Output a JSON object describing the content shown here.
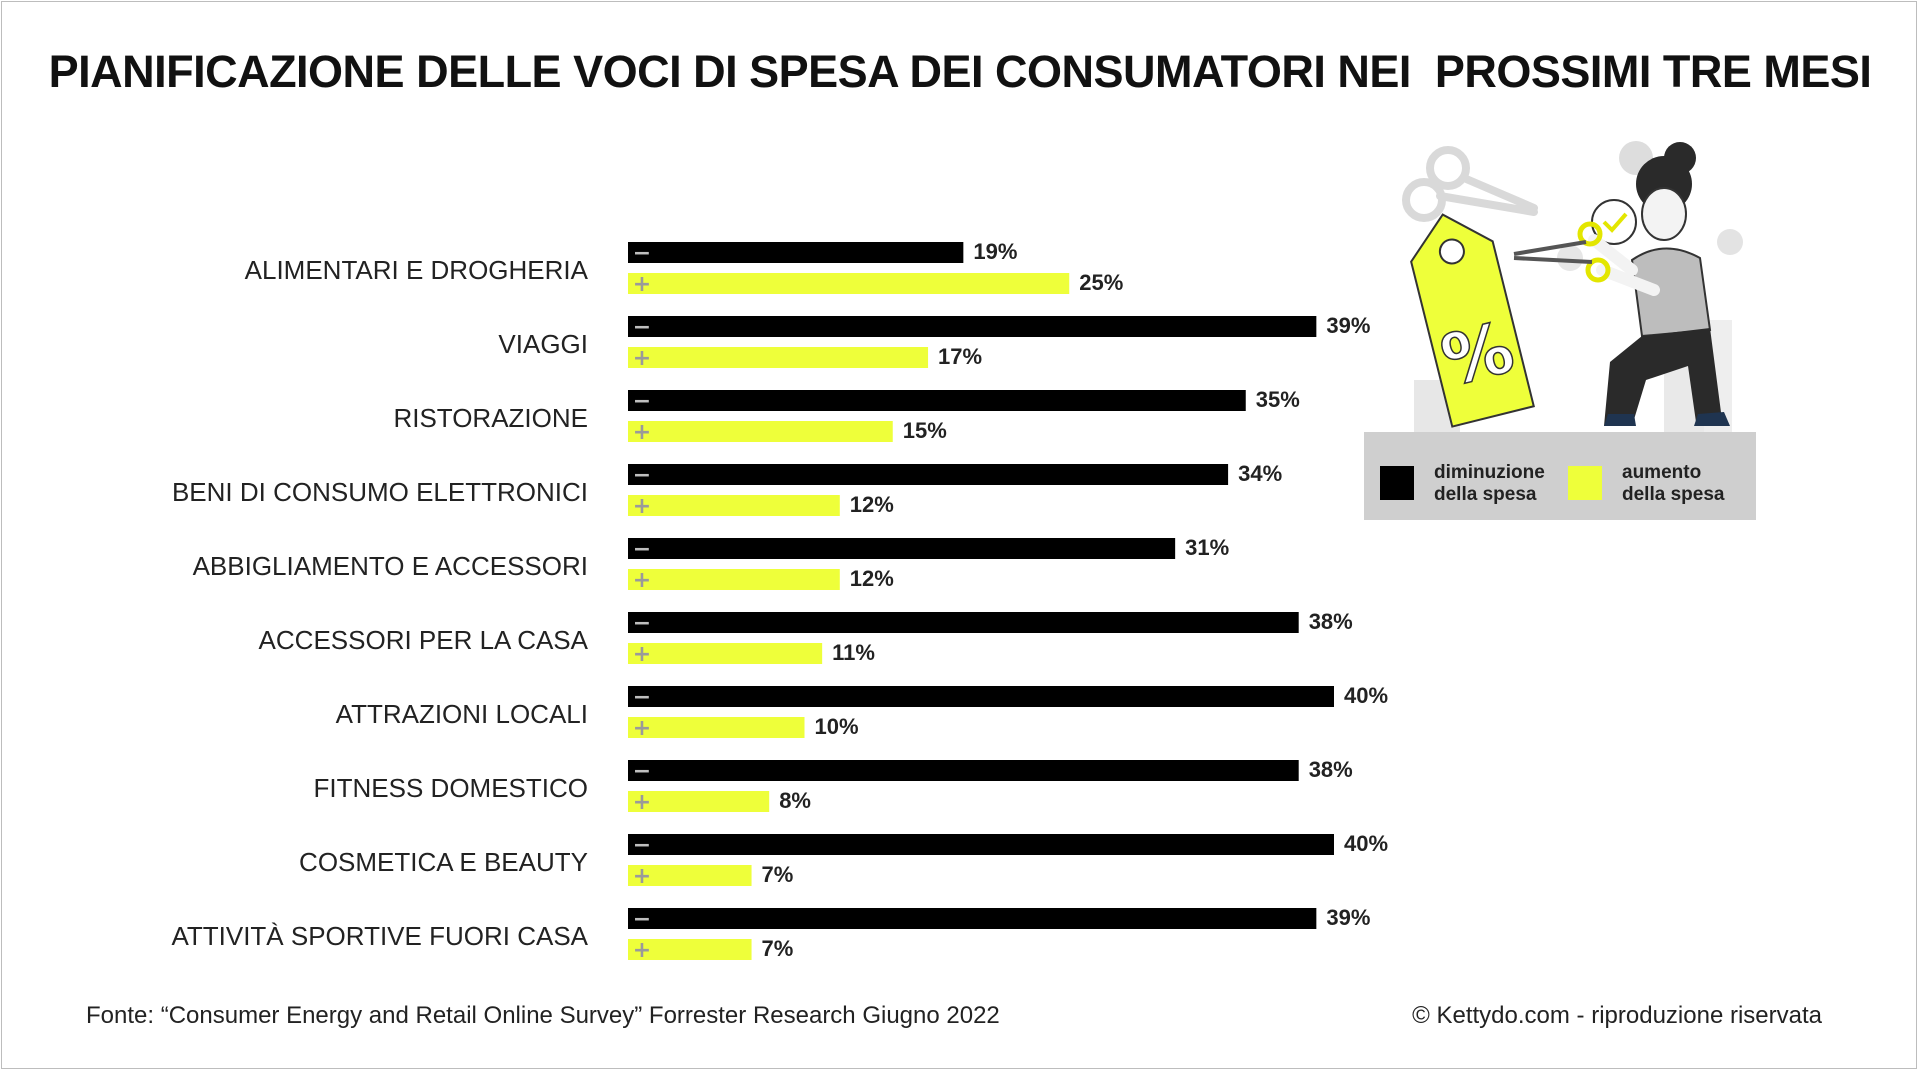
{
  "title": "PIANIFICAZIONE DELLE VOCI DI SPESA DEI CONSUMATORI NEI  PROSSIMI TRE MESI",
  "chart_data": {
    "type": "bar",
    "orientation": "horizontal",
    "title": "PIANIFICAZIONE DELLE VOCI DI SPESA DEI CONSUMATORI NEI  PROSSIMI TRE MESI",
    "categories": [
      "ALIMENTARI E DROGHERIA",
      "VIAGGI",
      "RISTORAZIONE",
      "BENI DI CONSUMO ELETTRONICI",
      "ABBIGLIAMENTO E ACCESSORI",
      "ACCESSORI PER LA CASA",
      "ATTRAZIONI LOCALI",
      "FITNESS DOMESTICO",
      "COSMETICA E BEAUTY",
      "ATTIVITÀ SPORTIVE FUORI CASA"
    ],
    "series": [
      {
        "name": "diminuzione della spesa",
        "sign": "−",
        "color": "#000000",
        "values": [
          19,
          39,
          35,
          34,
          31,
          38,
          40,
          38,
          40,
          39
        ]
      },
      {
        "name": "aumento della spesa",
        "sign": "+",
        "color": "#eeff3a",
        "values": [
          25,
          17,
          15,
          12,
          12,
          11,
          10,
          8,
          7,
          7
        ]
      }
    ],
    "value_suffix": "%",
    "grid": false,
    "legend_placement": "right"
  },
  "legend": {
    "decrease_line1": "diminuzione",
    "decrease_line2": "della spesa",
    "increase_line1": "aumento",
    "increase_line2": "della spesa"
  },
  "illustration": {
    "description_icon": "shopping-discount-person-icon",
    "tag_text": "%"
  },
  "footer": {
    "source": "Fonte: “Consumer Energy and Retail Online Survey” Forrester Research Giugno 2022",
    "copyright": "© Kettydo.com - riproduzione riservata"
  }
}
